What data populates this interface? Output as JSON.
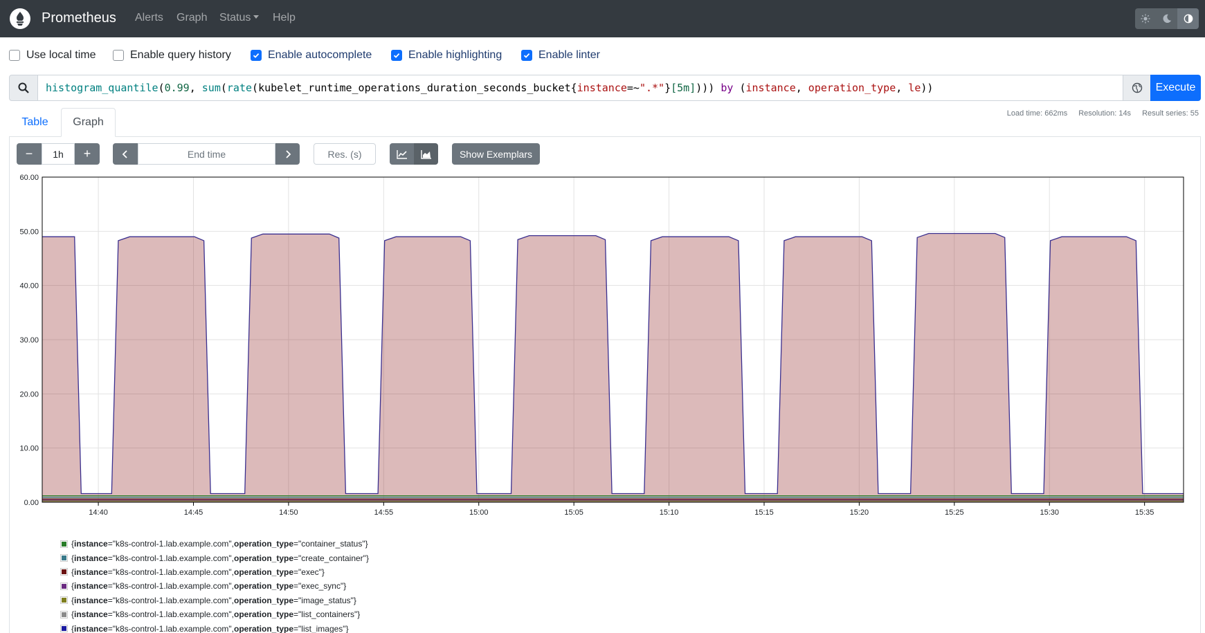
{
  "navbar": {
    "brand": "Prometheus",
    "links": {
      "alerts": "Alerts",
      "graph": "Graph",
      "status": "Status",
      "help": "Help"
    }
  },
  "options": {
    "use_local_time": {
      "label": "Use local time",
      "checked": false
    },
    "query_history": {
      "label": "Enable query history",
      "checked": false
    },
    "autocomplete": {
      "label": "Enable autocomplete",
      "checked": true
    },
    "highlighting": {
      "label": "Enable highlighting",
      "checked": true
    },
    "linter": {
      "label": "Enable linter",
      "checked": true
    }
  },
  "query": {
    "tokens": [
      {
        "t": "histogram_quantile",
        "c": "q-fn"
      },
      {
        "t": "(",
        "c": "q-op"
      },
      {
        "t": "0.99",
        "c": "q-num"
      },
      {
        "t": ", ",
        "c": "q-op"
      },
      {
        "t": "sum",
        "c": "q-fn"
      },
      {
        "t": "(",
        "c": "q-op"
      },
      {
        "t": "rate",
        "c": "q-fn"
      },
      {
        "t": "(",
        "c": "q-op"
      },
      {
        "t": "kubelet_runtime_operations_duration_seconds_bucket",
        "c": "q-metric"
      },
      {
        "t": "{",
        "c": "q-op"
      },
      {
        "t": "instance",
        "c": "q-label"
      },
      {
        "t": "=~",
        "c": "q-op"
      },
      {
        "t": "\".*\"",
        "c": "q-str"
      },
      {
        "t": "}",
        "c": "q-op"
      },
      {
        "t": "[5m]",
        "c": "q-num"
      },
      {
        "t": "))) ",
        "c": "q-op"
      },
      {
        "t": "by",
        "c": "q-kw"
      },
      {
        "t": " (",
        "c": "q-op"
      },
      {
        "t": "instance",
        "c": "q-label"
      },
      {
        "t": ", ",
        "c": "q-op"
      },
      {
        "t": "operation_type",
        "c": "q-label"
      },
      {
        "t": ", ",
        "c": "q-op"
      },
      {
        "t": "le",
        "c": "q-label"
      },
      {
        "t": "))",
        "c": "q-op"
      }
    ],
    "execute_label": "Execute"
  },
  "tabs": {
    "table": "Table",
    "graph": "Graph"
  },
  "stats": {
    "load_time": "Load time: 662ms",
    "resolution": "Resolution: 14s",
    "result_series": "Result series: 55"
  },
  "controls": {
    "range_value": "1h",
    "minus": "−",
    "plus": "+",
    "end_time_placeholder": "End time",
    "resolution_placeholder": "Res. (s)",
    "show_exemplars": "Show Exemplars"
  },
  "chart_data": {
    "type": "area",
    "stacked": true,
    "y_ticks": [
      "0.00",
      "10.00",
      "20.00",
      "30.00",
      "40.00",
      "50.00",
      "60.00"
    ],
    "ylim": [
      0,
      60
    ],
    "x_ticks": [
      "14:40",
      "14:45",
      "14:50",
      "14:55",
      "15:00",
      "15:05",
      "15:10",
      "15:15",
      "15:20",
      "15:25",
      "15:30",
      "15:35"
    ],
    "x_tick_minutes": [
      0,
      5,
      10,
      15,
      20,
      25,
      30,
      35,
      40,
      45,
      50,
      55
    ],
    "x_range_minutes": [
      -2.95,
      57.05
    ],
    "grid": true,
    "main_series_color": "#8b1a1a",
    "main_series_line_color": "#3a2f8f",
    "high_value": 49,
    "low_value": 1.6,
    "high_segments_minutes": [
      [
        -2.95,
        -1.25,
        49.0
      ],
      [
        1.05,
        5.55,
        49.0
      ],
      [
        8.05,
        12.65,
        49.5
      ],
      [
        15.05,
        19.55,
        49.0
      ],
      [
        22.05,
        26.65,
        49.2
      ],
      [
        29.05,
        33.65,
        49.0
      ],
      [
        36.05,
        40.65,
        49.0
      ],
      [
        43.05,
        47.65,
        49.6
      ],
      [
        50.05,
        54.55,
        49.0
      ]
    ],
    "low_series": [
      {
        "color": "#2a7d2a",
        "value": 1.2
      },
      {
        "color": "#3a7a8a",
        "value": 0.9
      },
      {
        "color": "#6b1212",
        "value": 0.6
      },
      {
        "color": "#6a2a80",
        "value": 0.4
      },
      {
        "color": "#7f7f1f",
        "value": 0.25
      }
    ]
  },
  "legend": [
    {
      "color": "#2a7d2a",
      "instance": "\"k8s-control-1.lab.example.com\"",
      "op": "\"container_status\""
    },
    {
      "color": "#3a7a8a",
      "instance": "\"k8s-control-1.lab.example.com\"",
      "op": "\"create_container\""
    },
    {
      "color": "#6b1212",
      "instance": "\"k8s-control-1.lab.example.com\"",
      "op": "\"exec\""
    },
    {
      "color": "#6a2a80",
      "instance": "\"k8s-control-1.lab.example.com\"",
      "op": "\"exec_sync\""
    },
    {
      "color": "#7f7f1f",
      "instance": "\"k8s-control-1.lab.example.com\"",
      "op": "\"image_status\""
    },
    {
      "color": "#8a8a8a",
      "instance": "\"k8s-control-1.lab.example.com\"",
      "op": "\"list_containers\""
    },
    {
      "color": "#1a1aa0",
      "instance": "\"k8s-control-1.lab.example.com\"",
      "op": "\"list_images\""
    }
  ],
  "legend_keys": {
    "instance": "instance",
    "operation_type": "operation_type"
  }
}
